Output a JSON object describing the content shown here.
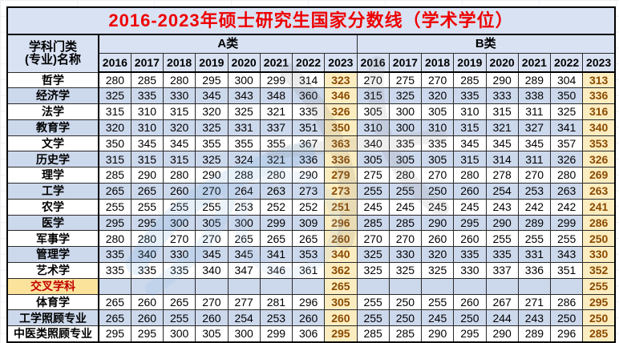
{
  "title": "2016-2023年硕士研究生国家分数线（学术学位）",
  "table": {
    "corner_header_line1": "学科门类",
    "corner_header_line2": "(专业)名称",
    "group_a_label": "A类",
    "group_b_label": "B类",
    "years": [
      "2016",
      "2017",
      "2018",
      "2019",
      "2020",
      "2021",
      "2022",
      "2023"
    ],
    "rows": [
      {
        "label": "哲学",
        "a": [
          280,
          285,
          280,
          295,
          300,
          299,
          314,
          323
        ],
        "b": [
          270,
          275,
          270,
          285,
          290,
          289,
          304,
          313
        ]
      },
      {
        "label": "经济学",
        "a": [
          325,
          335,
          330,
          345,
          343,
          348,
          360,
          346
        ],
        "b": [
          315,
          325,
          320,
          335,
          333,
          338,
          350,
          336
        ]
      },
      {
        "label": "法学",
        "a": [
          315,
          310,
          315,
          320,
          325,
          321,
          335,
          326
        ],
        "b": [
          305,
          300,
          305,
          310,
          315,
          311,
          325,
          316
        ]
      },
      {
        "label": "教育学",
        "a": [
          320,
          310,
          320,
          325,
          331,
          337,
          351,
          350
        ],
        "b": [
          310,
          300,
          310,
          315,
          321,
          327,
          341,
          340
        ]
      },
      {
        "label": "文学",
        "a": [
          350,
          345,
          345,
          355,
          355,
          355,
          367,
          363
        ],
        "b": [
          340,
          335,
          335,
          345,
          345,
          345,
          357,
          353
        ]
      },
      {
        "label": "历史学",
        "a": [
          315,
          315,
          315,
          325,
          324,
          321,
          336,
          336
        ],
        "b": [
          305,
          305,
          305,
          315,
          314,
          311,
          326,
          326
        ]
      },
      {
        "label": "理学",
        "a": [
          285,
          290,
          280,
          290,
          288,
          280,
          290,
          279
        ],
        "b": [
          275,
          280,
          270,
          280,
          278,
          270,
          280,
          269
        ]
      },
      {
        "label": "工学",
        "a": [
          265,
          265,
          260,
          270,
          264,
          263,
          273,
          273
        ],
        "b": [
          255,
          255,
          250,
          260,
          254,
          253,
          263,
          263
        ]
      },
      {
        "label": "农学",
        "a": [
          255,
          255,
          255,
          255,
          253,
          252,
          252,
          251
        ],
        "b": [
          245,
          245,
          245,
          245,
          243,
          242,
          242,
          241
        ]
      },
      {
        "label": "医学",
        "a": [
          295,
          295,
          300,
          305,
          300,
          299,
          309,
          296
        ],
        "b": [
          285,
          285,
          290,
          295,
          290,
          289,
          299,
          286
        ]
      },
      {
        "label": "军事学",
        "a": [
          280,
          280,
          270,
          270,
          265,
          265,
          265,
          260
        ],
        "b": [
          270,
          270,
          260,
          260,
          255,
          255,
          255,
          250
        ]
      },
      {
        "label": "管理学",
        "a": [
          335,
          340,
          330,
          345,
          345,
          341,
          353,
          340
        ],
        "b": [
          325,
          330,
          320,
          335,
          335,
          331,
          343,
          330
        ]
      },
      {
        "label": "艺术学",
        "a": [
          335,
          335,
          335,
          340,
          347,
          346,
          361,
          362
        ],
        "b": [
          325,
          325,
          325,
          330,
          337,
          336,
          351,
          352
        ]
      },
      {
        "label": "交叉学科",
        "highlight": true,
        "a": [
          "",
          "",
          "",
          "",
          "",
          "",
          "",
          265
        ],
        "b": [
          "",
          "",
          "",
          "",
          "",
          "",
          "",
          255
        ]
      },
      {
        "label": "体育学",
        "a": [
          265,
          260,
          265,
          270,
          277,
          281,
          296,
          305
        ],
        "b": [
          255,
          250,
          255,
          260,
          267,
          271,
          286,
          295
        ]
      },
      {
        "label": "工学照顾专业",
        "a": [
          265,
          260,
          255,
          260,
          254,
          253,
          260,
          260
        ],
        "b": [
          255,
          250,
          245,
          250,
          244,
          243,
          250,
          250
        ]
      },
      {
        "label": "中医类照顾专业",
        "a": [
          295,
          295,
          300,
          305,
          300,
          299,
          306,
          295
        ],
        "b": [
          285,
          285,
          290,
          295,
          290,
          289,
          296,
          285
        ]
      }
    ]
  },
  "colors": {
    "title_red": "#ee0000",
    "header_bg": "#d9e2f3",
    "band_bg": "#ccd8ec",
    "gold_bg": "#fcedc0",
    "gold_text": "#8a4a00",
    "cross_bg": "#fbe39c",
    "cross_text": "#c00000"
  }
}
